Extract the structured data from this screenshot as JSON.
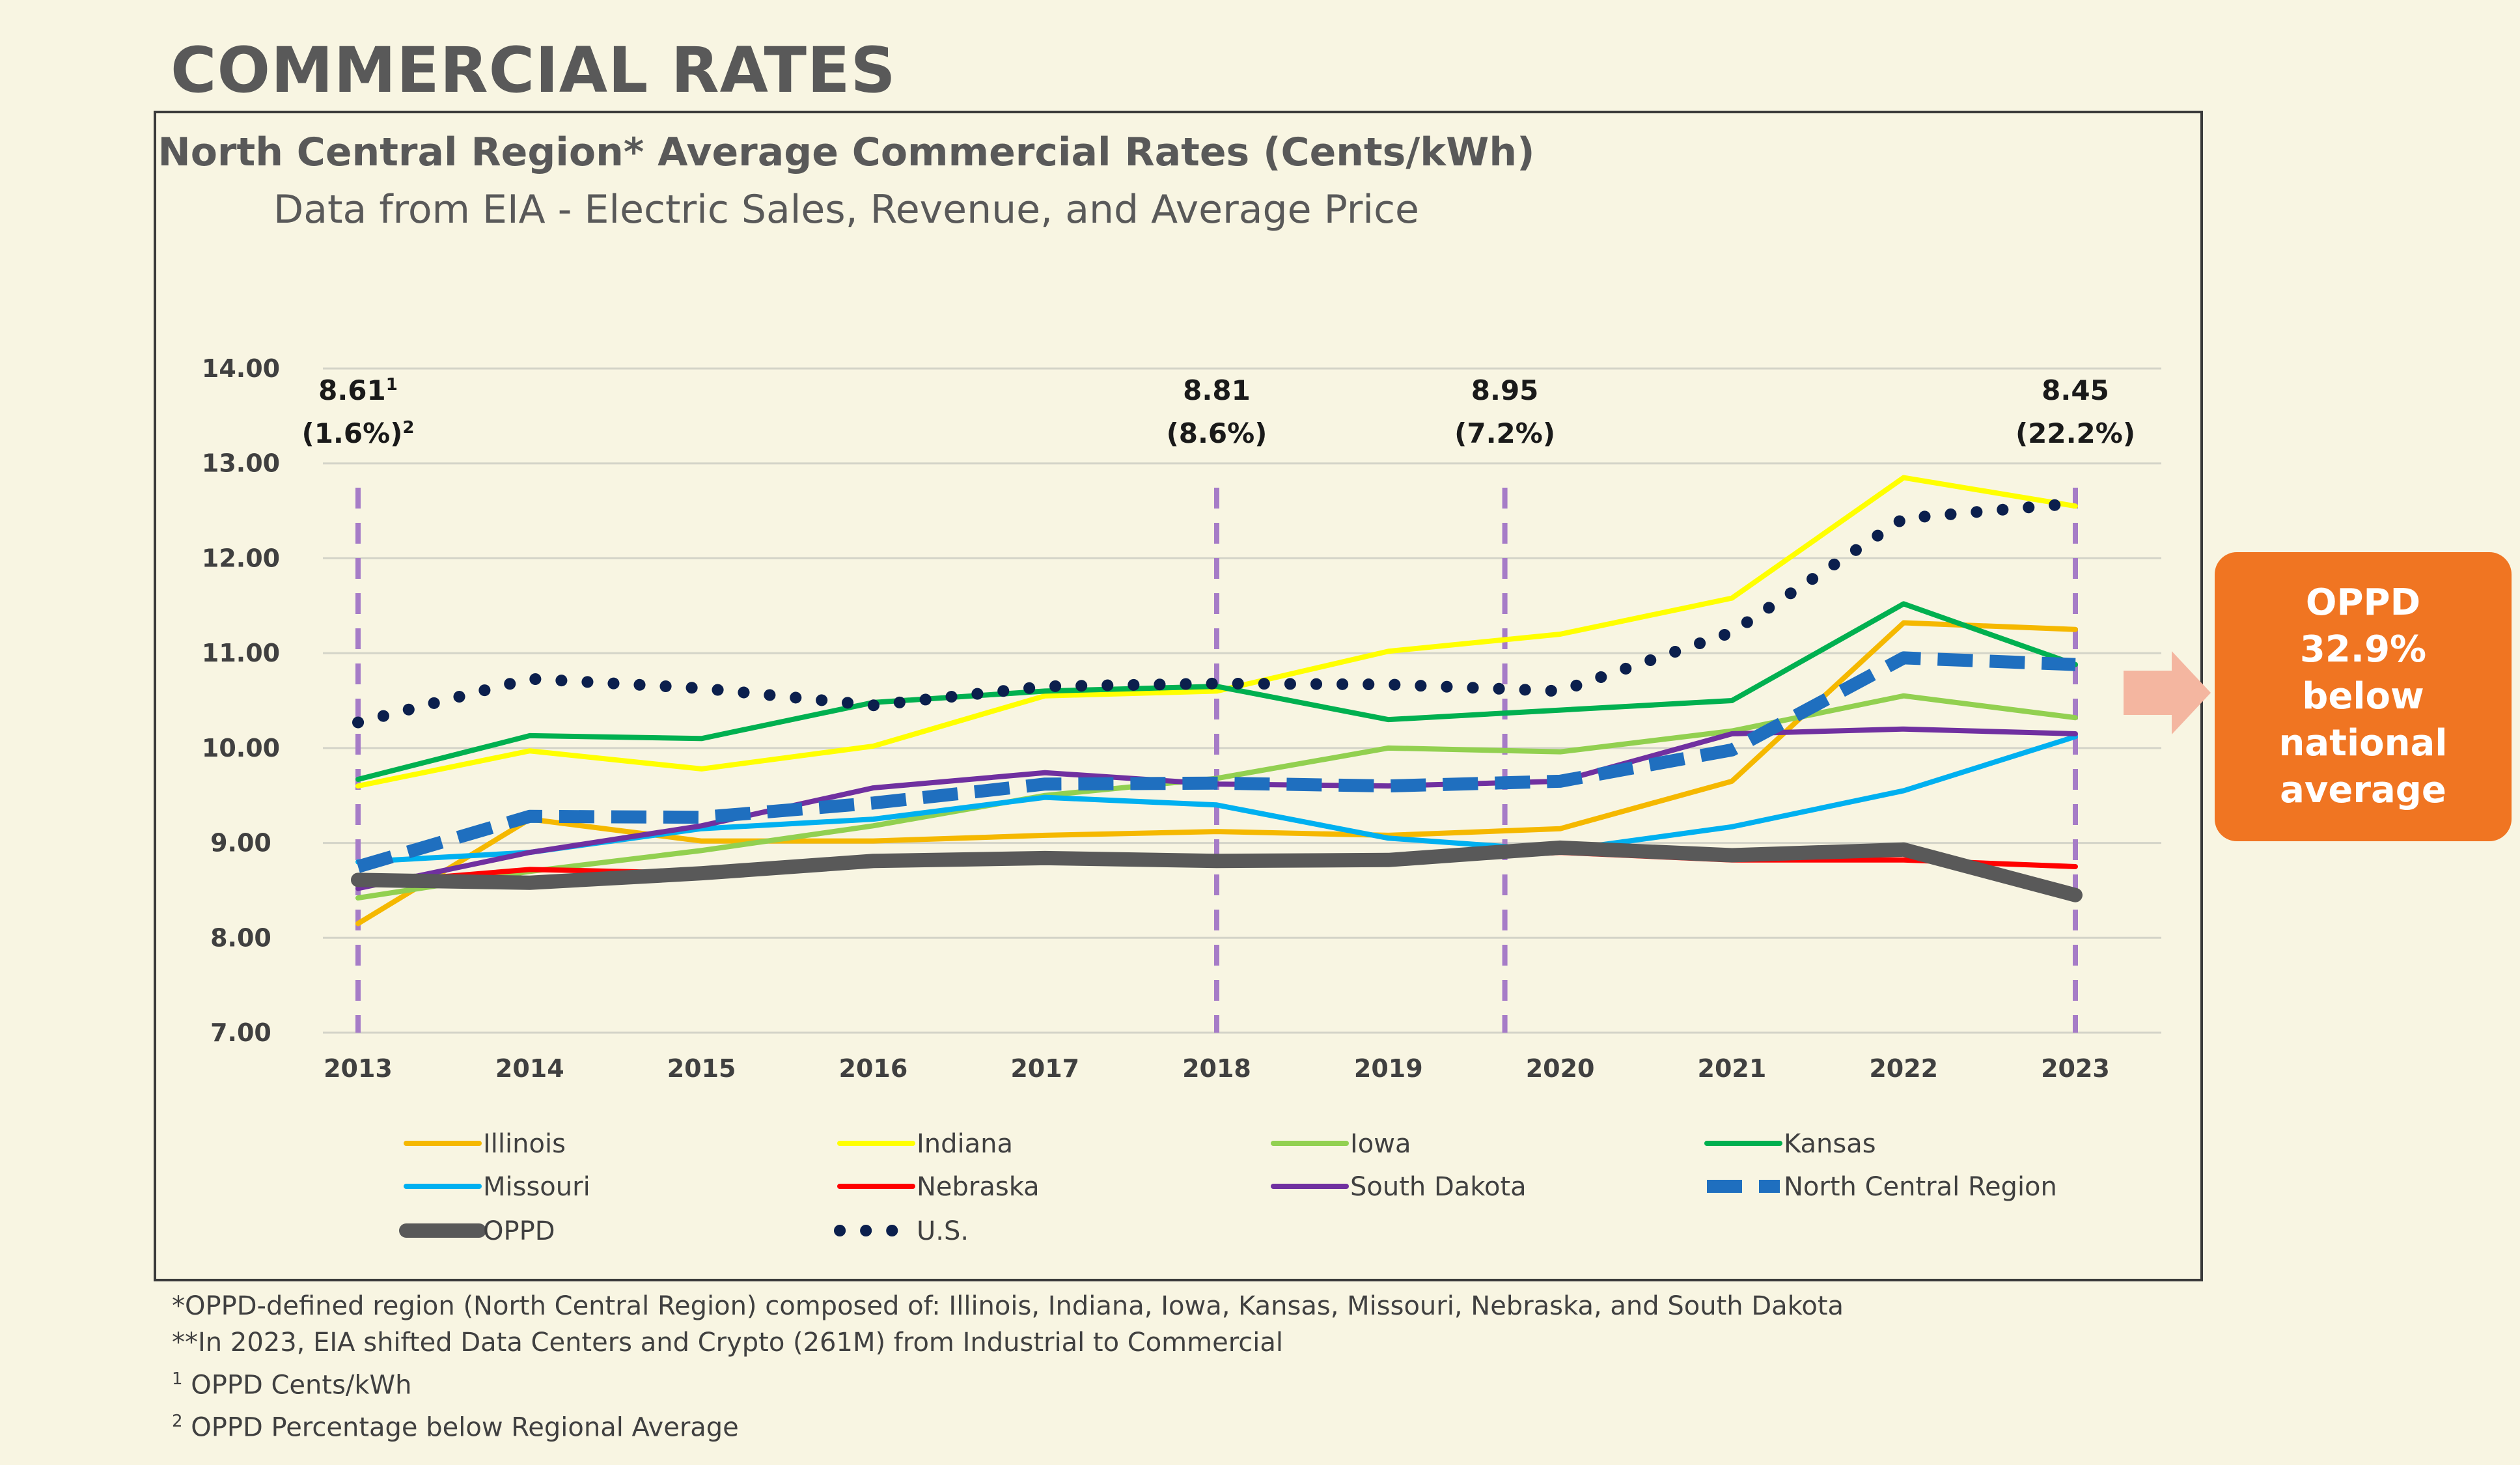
{
  "page": {
    "title": "COMMERCIAL RATES"
  },
  "chart_data": {
    "type": "line",
    "title": "North Central Region* Average Commercial Rates (Cents/kWh)",
    "subtitle": "Data from EIA - Electric Sales, Revenue, and Average Price",
    "x": [
      "2013",
      "2014",
      "2015",
      "2016",
      "2017",
      "2018",
      "2019",
      "2020",
      "2021",
      "2022",
      "2023"
    ],
    "ylim": [
      7.0,
      14.0
    ],
    "yticks": [
      "7.00",
      "8.00",
      "9.00",
      "10.00",
      "11.00",
      "12.00",
      "13.00",
      "14.00"
    ],
    "grid": true,
    "legend_position": "bottom",
    "series": [
      {
        "name": "Illinois",
        "color": "#f5b800",
        "style": "solid",
        "values": [
          8.15,
          9.25,
          9.02,
          9.02,
          9.08,
          9.12,
          9.08,
          9.15,
          9.65,
          11.32,
          11.25
        ]
      },
      {
        "name": "Indiana",
        "color": "#ffff00",
        "style": "solid",
        "values": [
          9.6,
          9.97,
          9.78,
          10.02,
          10.55,
          10.6,
          11.02,
          11.2,
          11.58,
          12.85,
          12.55
        ]
      },
      {
        "name": "Iowa",
        "color": "#92d050",
        "style": "solid",
        "values": [
          8.42,
          8.7,
          8.92,
          9.18,
          9.5,
          9.68,
          10.0,
          9.96,
          10.18,
          10.55,
          10.32
        ]
      },
      {
        "name": "Kansas",
        "color": "#00b050",
        "style": "solid",
        "values": [
          9.67,
          10.13,
          10.1,
          10.48,
          10.6,
          10.65,
          10.3,
          10.4,
          10.5,
          11.52,
          10.88
        ]
      },
      {
        "name": "Missouri",
        "color": "#00b0f0",
        "style": "solid",
        "values": [
          8.8,
          8.9,
          9.15,
          9.25,
          9.48,
          9.4,
          9.05,
          8.92,
          9.17,
          9.55,
          10.12
        ]
      },
      {
        "name": "Nebraska",
        "color": "#ff0000",
        "style": "solid",
        "values": [
          8.57,
          8.72,
          8.68,
          8.8,
          8.83,
          8.8,
          8.8,
          8.9,
          8.82,
          8.82,
          8.75
        ]
      },
      {
        "name": "South Dakota",
        "color": "#7030a0",
        "style": "solid",
        "values": [
          8.52,
          8.9,
          9.18,
          9.58,
          9.74,
          9.62,
          9.6,
          9.65,
          10.15,
          10.2,
          10.15
        ]
      },
      {
        "name": "North Central Region",
        "color": "#1f6fbf",
        "style": "dashed",
        "values": [
          8.75,
          9.28,
          9.27,
          9.42,
          9.62,
          9.63,
          9.6,
          9.65,
          9.98,
          10.95,
          10.88
        ]
      },
      {
        "name": "OPPD",
        "color": "#595959",
        "style": "thick",
        "values": [
          8.61,
          8.58,
          8.68,
          8.81,
          8.84,
          8.81,
          8.82,
          8.95,
          8.87,
          8.93,
          8.45
        ]
      },
      {
        "name": "U.S.",
        "color": "#0b1f4d",
        "style": "dotted",
        "values": [
          10.27,
          10.73,
          10.63,
          10.45,
          10.65,
          10.68,
          10.67,
          10.6,
          11.22,
          12.42,
          12.58
        ]
      }
    ],
    "annotations": [
      {
        "year": "2013",
        "line1": "8.61",
        "sup1": "1",
        "line2": "(1.6%)",
        "sup2": "2"
      },
      {
        "year": "2018",
        "line1": "8.81",
        "sup1": "",
        "line2": "(8.6%)",
        "sup2": ""
      },
      {
        "year": "2020",
        "line1": "8.95",
        "sup1": "",
        "line2": "(7.2%)",
        "sup2": ""
      },
      {
        "year": "2023",
        "line1": "8.45",
        "sup1": "",
        "line2": "(22.2%)",
        "sup2": ""
      }
    ],
    "marker_line_color": "#a67cc7"
  },
  "footnotes": {
    "region": "*OPPD-defined region (North Central Region) composed of: Illinois, Indiana, Iowa, Kansas, Missouri, Nebraska, and South Dakota",
    "shift": "**In 2023, EIA shifted Data Centers and Crypto (261M) from Industrial to Commercial",
    "note1_mark": "1",
    "note1": " OPPD Cents/kWh",
    "note2_mark": "2",
    "note2": " OPPD Percentage below Regional Average"
  },
  "callout": {
    "text": "OPPD 32.9% below national average",
    "bg_color": "#f07522",
    "arrow_color": "#f4b6a0"
  }
}
